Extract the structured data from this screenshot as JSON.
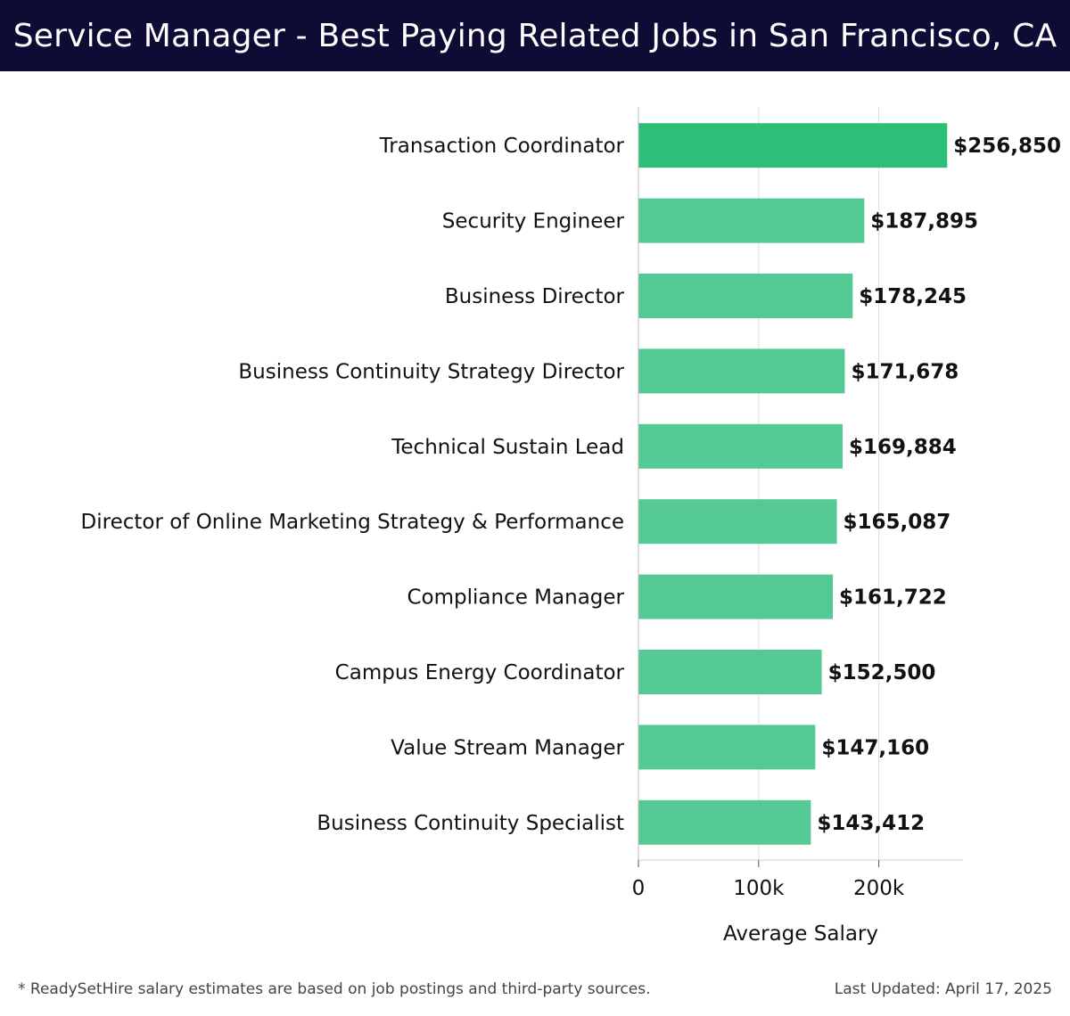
{
  "header": {
    "title": "Service Manager - Best Paying Related Jobs in San Francisco, CA"
  },
  "colors": {
    "header_bg": "#0e0c34",
    "bar_top": "#2dbe78",
    "bar": "#54c994",
    "grid": "#dddddd"
  },
  "chart_data": {
    "type": "bar",
    "orientation": "horizontal",
    "categories": [
      "Transaction Coordinator",
      "Security Engineer",
      "Business Director",
      "Business Continuity Strategy Director",
      "Technical Sustain Lead",
      "Director of Online Marketing Strategy & Performance",
      "Compliance Manager",
      "Campus Energy Coordinator",
      "Value Stream Manager",
      "Business Continuity Specialist"
    ],
    "values": [
      256850,
      187895,
      178245,
      171678,
      169884,
      165087,
      161722,
      152500,
      147160,
      143412
    ],
    "value_labels": [
      "$256,850",
      "$187,895",
      "$178,245",
      "$171,678",
      "$169,884",
      "$165,087",
      "$161,722",
      "$152,500",
      "$147,160",
      "$143,412"
    ],
    "xlabel": "Average Salary",
    "xticks": [
      0,
      100000,
      200000
    ],
    "xtick_labels": [
      "0",
      "100k",
      "200k"
    ],
    "xlim": [
      0,
      270000
    ],
    "grid": true
  },
  "footer": {
    "note": "* ReadySetHire salary estimates are based on job postings and third-party sources.",
    "updated": "Last Updated: April 17, 2025"
  }
}
